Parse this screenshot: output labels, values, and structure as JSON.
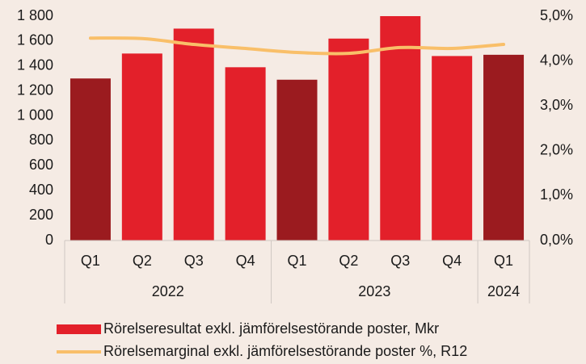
{
  "chart_data": {
    "type": "bar",
    "categories": [
      "Q1",
      "Q2",
      "Q3",
      "Q4",
      "Q1",
      "Q2",
      "Q3",
      "Q4",
      "Q1"
    ],
    "x_groups": [
      {
        "name": "2022",
        "count": 4
      },
      {
        "name": "2023",
        "count": 4
      },
      {
        "name": "2024",
        "count": 1
      }
    ],
    "series": [
      {
        "name": "Rörelseresultat exkl. jämförelsestörande poster, Mkr",
        "type": "bar",
        "color": "#e3202a",
        "colors": [
          "#9b1b1f",
          "#e3202a",
          "#e3202a",
          "#e3202a",
          "#9b1b1f",
          "#e3202a",
          "#e3202a",
          "#e3202a",
          "#9b1b1f"
        ],
        "values": [
          1300,
          1500,
          1700,
          1390,
          1290,
          1620,
          1800,
          1480,
          1490
        ]
      },
      {
        "name": "Rörelsemarginal exkl. jämförelsestörande poster %, R12",
        "type": "line",
        "color": "#f9bf69",
        "axis": "y2",
        "values": [
          4.51,
          4.5,
          4.37,
          4.28,
          4.19,
          4.17,
          4.3,
          4.28,
          4.37
        ]
      }
    ],
    "ylim": [
      0,
      1800
    ],
    "yticks": [
      0,
      200,
      400,
      600,
      800,
      {
        "value": 1000,
        "label": "1 000"
      },
      {
        "value": 1200,
        "label": "1 200"
      },
      {
        "value": 1400,
        "label": "1 400"
      },
      {
        "value": 1600,
        "label": "1 600"
      },
      {
        "value": 1800,
        "label": "1 800"
      }
    ],
    "y2lim": [
      0,
      5
    ],
    "y2ticks": [
      {
        "value": 0,
        "label": "0,0%"
      },
      {
        "value": 1,
        "label": "1,0%"
      },
      {
        "value": 2,
        "label": "2,0%"
      },
      {
        "value": 3,
        "label": "3,0%"
      },
      {
        "value": 4,
        "label": "4,0%"
      },
      {
        "value": 5,
        "label": "5,0%"
      }
    ],
    "legend": "bottom"
  }
}
